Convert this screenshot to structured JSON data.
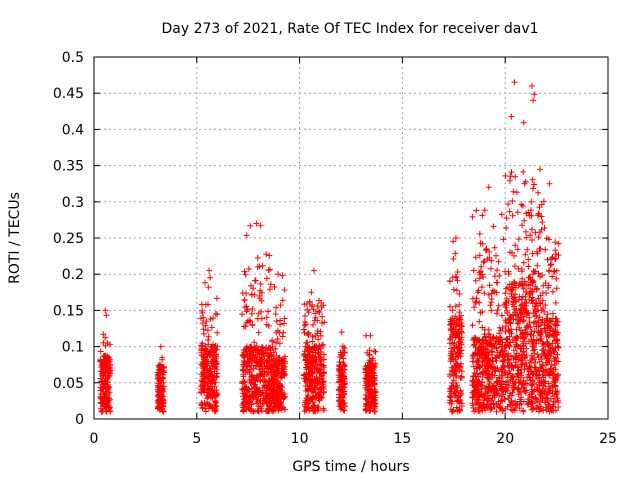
{
  "chart_data": {
    "type": "scatter",
    "title": "Day 273 of 2021, Rate Of TEC Index for receiver dav1",
    "xlabel": "GPS time / hours",
    "ylabel": "ROTI / TECUs",
    "xlim": [
      0,
      25
    ],
    "ylim": [
      0,
      0.5
    ],
    "xticks": [
      "0",
      "5",
      "10",
      "15",
      "20",
      "25"
    ],
    "yticks": [
      "0",
      "0.05",
      "0.1",
      "0.15",
      "0.2",
      "0.25",
      "0.3",
      "0.35",
      "0.4",
      "0.45",
      "0.5"
    ],
    "grid": true,
    "marker": "plus",
    "color": "#ff0000",
    "clusters": [
      {
        "x": [
          0.3,
          0.8
        ],
        "y_typical": 0.06,
        "y_max": 0.15
      },
      {
        "x": [
          3.1,
          3.4
        ],
        "y_typical": 0.05,
        "y_max": 0.1
      },
      {
        "x": [
          5.2,
          6.0
        ],
        "y_typical": 0.07,
        "y_max": 0.205
      },
      {
        "x": [
          7.2,
          8.6
        ],
        "y_typical": 0.07,
        "y_max": 0.27
      },
      {
        "x": [
          8.6,
          9.3
        ],
        "y_typical": 0.06,
        "y_max": 0.2
      },
      {
        "x": [
          10.2,
          11.2
        ],
        "y_typical": 0.07,
        "y_max": 0.205
      },
      {
        "x": [
          11.9,
          12.2
        ],
        "y_typical": 0.05,
        "y_max": 0.12
      },
      {
        "x": [
          13.2,
          13.7
        ],
        "y_typical": 0.05,
        "y_max": 0.115
      },
      {
        "x": [
          17.3,
          17.9
        ],
        "y_typical": 0.1,
        "y_max": 0.25
      },
      {
        "x": [
          18.4,
          20.0
        ],
        "y_typical": 0.08,
        "y_max": 0.32
      },
      {
        "x": [
          20.0,
          20.9
        ],
        "y_typical": 0.14,
        "y_max": 0.465
      },
      {
        "x": [
          20.9,
          21.7
        ],
        "y_typical": 0.15,
        "y_max": 0.46
      },
      {
        "x": [
          21.7,
          22.6
        ],
        "y_typical": 0.1,
        "y_max": 0.325
      }
    ]
  }
}
